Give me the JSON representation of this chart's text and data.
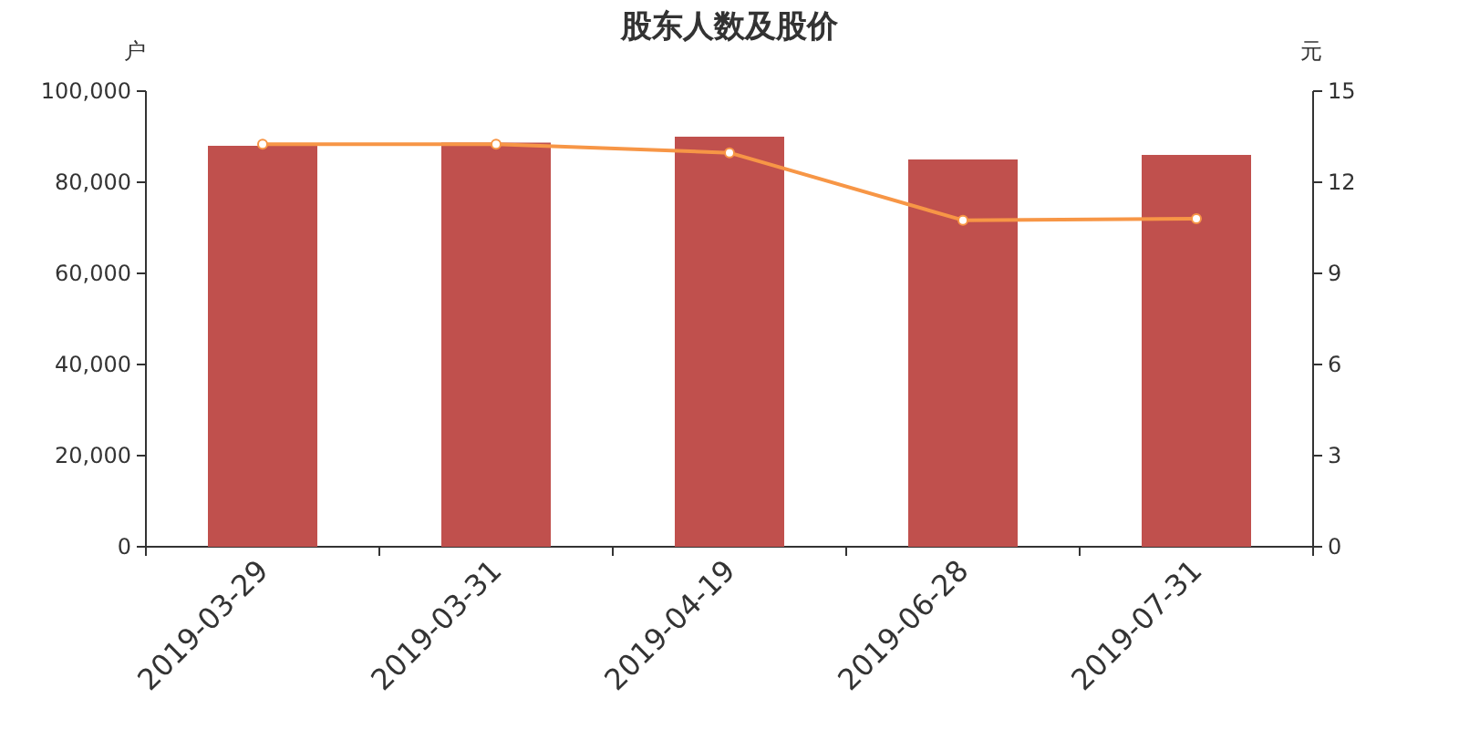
{
  "chart_data": {
    "type": "bar",
    "title": "股东人数及股价",
    "ylabel": "户",
    "y2label": "元",
    "categories": [
      "2019-03-29",
      "2019-03-31",
      "2019-04-19",
      "2019-06-28",
      "2019-07-31"
    ],
    "series": [
      {
        "color": "#c0504d",
        "values": [
          88000,
          88700,
          90000,
          85000,
          86000
        ]
      },
      {
        "type": "line",
        "axis": "y2",
        "color": "#f79646",
        "marker": "circle",
        "values": [
          13.25,
          13.25,
          12.97,
          10.75,
          10.8
        ]
      }
    ],
    "ylim": [
      0,
      100000
    ],
    "yticks": [
      {
        "value": 0,
        "label": "0"
      },
      {
        "value": 20000,
        "label": "20,000"
      },
      {
        "value": 40000,
        "label": "40,000"
      },
      {
        "value": 60000,
        "label": "60,000"
      },
      {
        "value": 80000,
        "label": "80,000"
      },
      {
        "value": 100000,
        "label": "100,000"
      }
    ],
    "y2lim": [
      0,
      15
    ],
    "y2ticks": [
      0,
      3,
      6,
      9,
      12,
      15
    ],
    "grid": false
  }
}
